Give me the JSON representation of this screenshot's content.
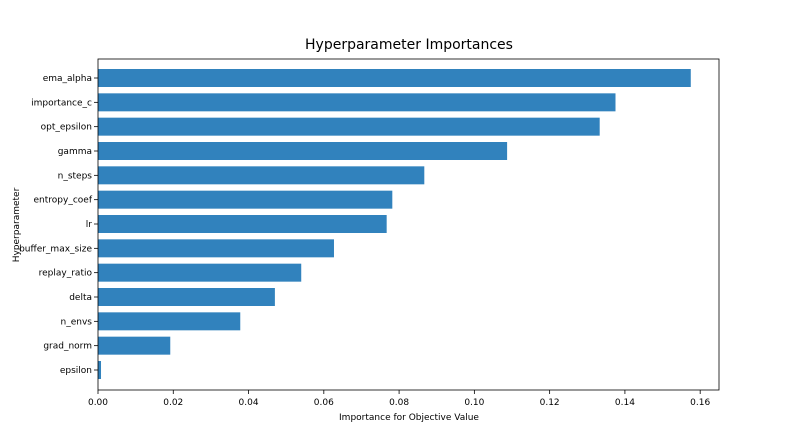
{
  "chart_data": {
    "type": "bar",
    "orientation": "horizontal",
    "title": "Hyperparameter Importances",
    "xlabel": "Importance for Objective Value",
    "ylabel": "Hyperparameter",
    "categories": [
      "ema_alpha",
      "importance_c",
      "opt_epsilon",
      "gamma",
      "n_steps",
      "entropy_coef",
      "lr",
      "buffer_max_size",
      "replay_ratio",
      "delta",
      "n_envs",
      "grad_norm",
      "epsilon"
    ],
    "values": [
      0.1575,
      0.1375,
      0.1333,
      0.1087,
      0.0867,
      0.0782,
      0.0767,
      0.0627,
      0.054,
      0.047,
      0.0378,
      0.0192,
      0.0008
    ],
    "xlim": [
      0,
      0.165
    ],
    "xticks": [
      "0.00",
      "0.02",
      "0.04",
      "0.06",
      "0.08",
      "0.10",
      "0.12",
      "0.14",
      "0.16"
    ],
    "xtick_values": [
      0,
      0.02,
      0.04,
      0.06,
      0.08,
      0.1,
      0.12,
      0.14,
      0.16
    ],
    "bar_color": "#3182bd",
    "grid": false,
    "legend": "none"
  }
}
